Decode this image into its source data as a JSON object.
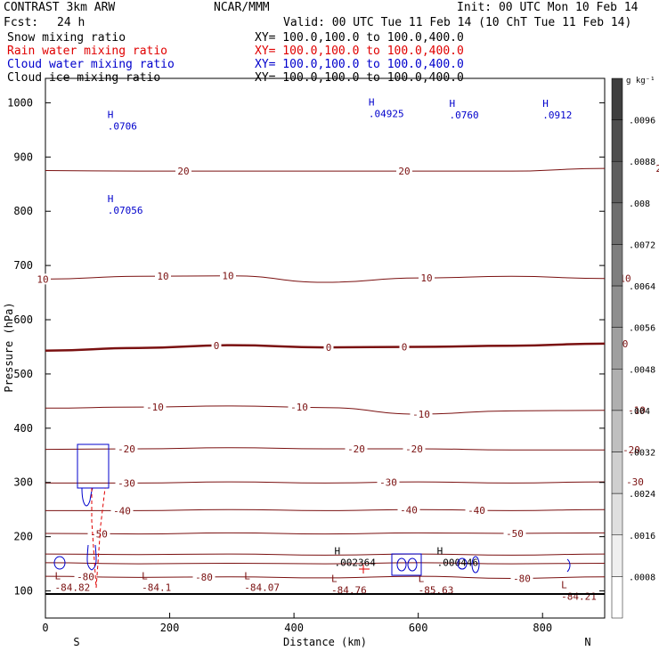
{
  "header": {
    "title_left": "CONTRAST  3km ARW",
    "title_mid": "NCAR/MMM",
    "title_right": "Init: 00 UTC Mon 10 Feb 14",
    "fcst_label": "Fcst:",
    "fcst_value": "24 h",
    "valid": "Valid: 00 UTC Tue 11 Feb 14 (10 ChT Tue 11 Feb 14)"
  },
  "fields": [
    {
      "name": "Snow mixing ratio",
      "xy": "XY= 100.0,100.0 to 100.0,400.0",
      "color": "#000000"
    },
    {
      "name": "Rain water mixing ratio",
      "xy": "XY= 100.0,100.0 to 100.0,400.0",
      "color": "#e00000"
    },
    {
      "name": "Cloud water mixing ratio",
      "xy": "XY= 100.0,100.0 to 100.0,400.0",
      "color": "#0000cc"
    },
    {
      "name": "Cloud ice mixing ratio",
      "xy": "XY= 100.0,100.0 to 100.0,400.0",
      "color": "#000000"
    }
  ],
  "chart_data": {
    "type": "contour-cross-section",
    "xlabel": "Distance (km)",
    "ylabel": "Pressure (hPa)",
    "xlim": [
      0,
      900
    ],
    "ylim": [
      1045,
      50
    ],
    "x_ticks": [
      0,
      200,
      400,
      600,
      800
    ],
    "x_tick_labels": [
      "0",
      "200",
      "400",
      "600",
      "800"
    ],
    "y_ticks": [
      100,
      200,
      300,
      400,
      500,
      600,
      700,
      800,
      900,
      1000
    ],
    "y_tick_labels": [
      "100",
      "200",
      "300",
      "400",
      "500",
      "600",
      "700",
      "800",
      "900",
      "1000"
    ],
    "end_labels": {
      "left": "S",
      "right": "N"
    },
    "temperature_contours": [
      {
        "value": -80,
        "label": "-80",
        "pressure": [
          127,
          125,
          126,
          124,
          127,
          123,
          126
        ],
        "label_x": [
          96,
          229,
          586
        ]
      },
      {
        "value": -70,
        "label": "",
        "pressure": [
          152,
          150,
          151,
          150,
          152,
          150,
          151
        ],
        "label_x": []
      },
      {
        "value": -60,
        "label": "",
        "pressure": [
          168,
          167,
          168,
          166,
          168,
          166,
          168
        ],
        "label_x": []
      },
      {
        "value": -50,
        "label": "-50",
        "pressure": [
          206,
          205,
          207,
          205,
          207,
          206,
          207
        ],
        "label_x": [
          111,
          578
        ]
      },
      {
        "value": -40,
        "label": "-40",
        "pressure": [
          248,
          248,
          250,
          248,
          250,
          248,
          250
        ],
        "label_x": [
          137,
          459,
          535,
          809
        ]
      },
      {
        "value": -30,
        "label": "-30",
        "pressure": [
          299,
          299,
          301,
          299,
          301,
          299,
          301
        ],
        "label_x": [
          142,
          436,
          713,
          830
        ]
      },
      {
        "value": -20,
        "label": "-20",
        "pressure": [
          361,
          362,
          364,
          362,
          362,
          360,
          360
        ],
        "label_x": [
          142,
          400,
          465,
          709
        ]
      },
      {
        "value": -10,
        "label": "-10",
        "pressure": [
          437,
          439,
          441,
          438,
          426,
          432,
          433
        ],
        "label_x": [
          174,
          336,
          473,
          715
        ]
      },
      {
        "value": 0,
        "label": "0",
        "pressure": [
          543,
          548,
          553,
          549,
          550,
          552,
          556
        ],
        "label_x": [
          243,
          369,
          454,
          702
        ]
      },
      {
        "value": 10,
        "label": "10",
        "pressure": [
          675,
          680,
          681,
          669,
          677,
          680,
          676
        ],
        "label_x": [
          48,
          183,
          256,
          479,
          702
        ]
      },
      {
        "value": 20,
        "label": "20",
        "pressure": [
          875,
          874,
          874,
          874,
          874,
          874,
          879
        ],
        "label_x": [
          206,
          454,
          743
        ]
      }
    ],
    "contour_x_km": [
      0,
      150,
      300,
      450,
      600,
      750,
      900
    ],
    "extrema": [
      {
        "type": "L",
        "value": "-84.82",
        "x_km": 15,
        "p": 107
      },
      {
        "type": "L",
        "value": "-84.1",
        "x_km": 155,
        "p": 107
      },
      {
        "type": "L",
        "value": "-84.07",
        "x_km": 320,
        "p": 107
      },
      {
        "type": "L",
        "value": "-84.76",
        "x_km": 460,
        "p": 102
      },
      {
        "type": "L",
        "value": "-85.63",
        "x_km": 600,
        "p": 102
      },
      {
        "type": "L",
        "value": "-84.21",
        "x_km": 830,
        "p": 90
      },
      {
        "type": "H",
        "value": ".002364",
        "x_km": 465,
        "p": 153
      },
      {
        "type": "H",
        "value": ".000446",
        "x_km": 630,
        "p": 153
      },
      {
        "type": "H",
        "value": ".0706",
        "x_km": 100,
        "p": 957
      },
      {
        "type": "H",
        "value": ".07056",
        "x_km": 100,
        "p": 802
      },
      {
        "type": "H",
        "value": ".0760",
        "x_km": 650,
        "p": 978
      },
      {
        "type": "H",
        "value": ".0912",
        "x_km": 800,
        "p": 978
      },
      {
        "type": "H",
        "value": ".04925",
        "x_km": 520,
        "p": 980
      }
    ],
    "colorbar": {
      "unit": "g kg⁻¹",
      "labels": [
        ".0096",
        ".0088",
        ".008",
        ".0072",
        ".0064",
        ".0056",
        ".0048",
        ".004",
        ".0032",
        ".0024",
        ".0016",
        ".0008"
      ]
    }
  }
}
